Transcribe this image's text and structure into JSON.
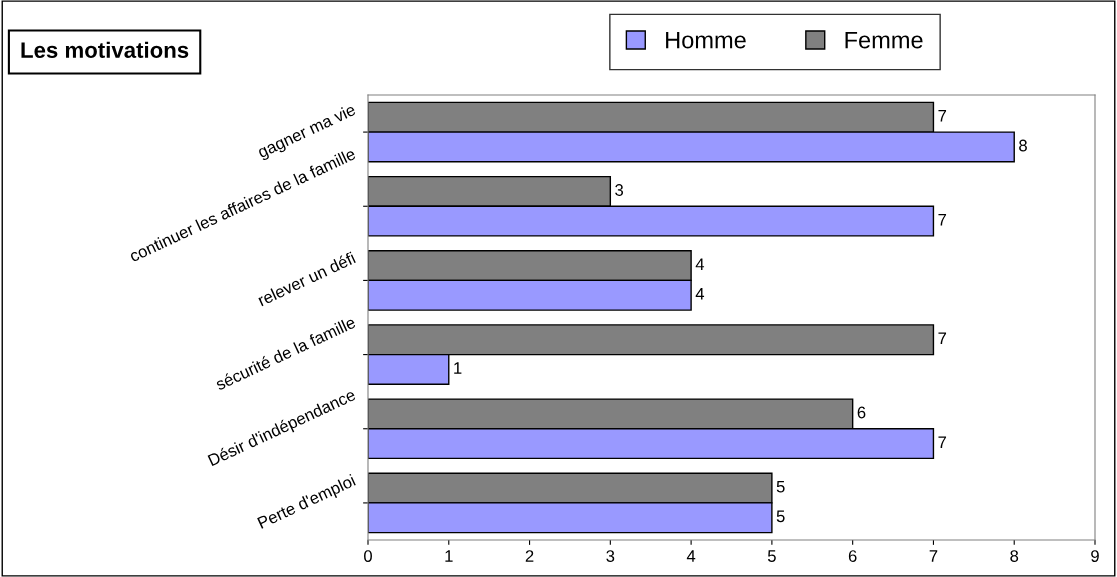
{
  "chart_data": {
    "type": "bar",
    "orientation": "horizontal",
    "title": "Les motivations",
    "categories": [
      "gagner ma vie",
      "continuer les affaires de la famille",
      "relever un défi",
      "sécurité de la famille",
      "Désir d'indépendance",
      "Perte d'emploi"
    ],
    "series": [
      {
        "name": "Femme",
        "color": "#808080",
        "values": [
          7,
          3,
          4,
          7,
          6,
          5
        ]
      },
      {
        "name": "Homme",
        "color": "#9999ff",
        "values": [
          8,
          7,
          4,
          1,
          7,
          5
        ]
      }
    ],
    "xlim": [
      0,
      9
    ],
    "xticks": [
      0,
      1,
      2,
      3,
      4,
      5,
      6,
      7,
      8,
      9
    ],
    "grid": false,
    "legend": "top right",
    "data_labels": true
  }
}
